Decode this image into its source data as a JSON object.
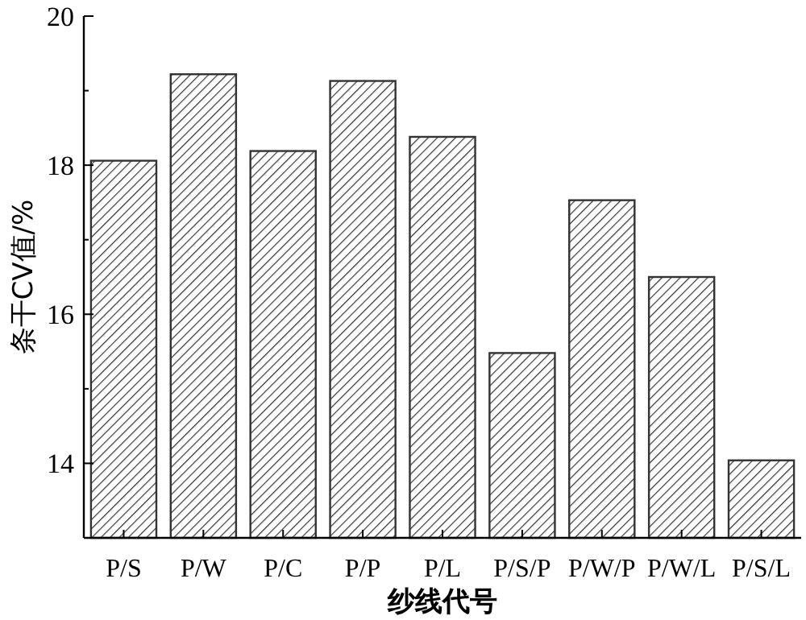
{
  "chart_data": {
    "type": "bar",
    "xlabel": "纱线代号",
    "ylabel": "条干CV值/%",
    "categories": [
      "P/S",
      "P/W",
      "P/C",
      "P/P",
      "P/L",
      "P/S/P",
      "P/W/P",
      "P/W/L",
      "P/S/L"
    ],
    "values": [
      18.06,
      19.22,
      18.19,
      19.13,
      18.38,
      15.48,
      17.53,
      16.5,
      14.04
    ],
    "color": "#333333",
    "ylim": [
      13,
      20
    ],
    "yticks": [
      {
        "value": 13,
        "label": null
      },
      14,
      {
        "value": 15,
        "label": null
      },
      16,
      {
        "value": 17,
        "label": null
      },
      18,
      {
        "value": 19,
        "label": null
      },
      20
    ],
    "grid": false
  }
}
